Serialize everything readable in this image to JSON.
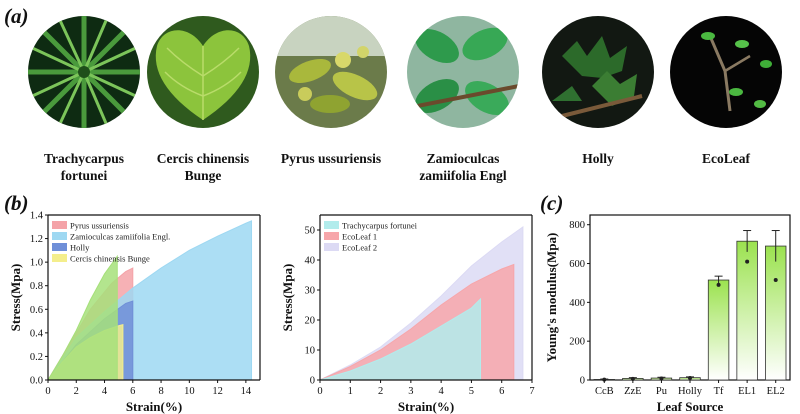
{
  "panel_a": {
    "label": "(a)",
    "leaves": [
      {
        "caption": [
          "Trachycarpus",
          "fortunei"
        ],
        "icon": "palm-leaf-photo"
      },
      {
        "caption": [
          "Cercis chinensis",
          "Bunge"
        ],
        "icon": "heart-leaf-photo"
      },
      {
        "caption": [
          "Pyrus ussuriensis"
        ],
        "icon": "pear-branch-photo"
      },
      {
        "caption": [
          "Zamioculcas",
          "zamiifolia Engl"
        ],
        "icon": "zz-plant-photo"
      },
      {
        "caption": [
          "Holly"
        ],
        "icon": "holly-leaf-photo"
      },
      {
        "caption": [
          "EcoLeaf"
        ],
        "icon": "ecoleaf-photo"
      }
    ]
  },
  "panel_b": {
    "label": "(b)"
  },
  "panel_c": {
    "label": "(c)"
  },
  "chart_data": [
    {
      "id": "b-left",
      "type": "area",
      "xlabel": "Strain(%)",
      "ylabel": "Stress(Mpa)",
      "xlim": [
        0,
        15
      ],
      "ylim": [
        0,
        1.4
      ],
      "xticks": [
        0,
        2,
        4,
        6,
        8,
        10,
        12,
        14
      ],
      "yticks": [
        0.0,
        0.2,
        0.4,
        0.6,
        0.8,
        1.0,
        1.2,
        1.4
      ],
      "legend_position": "top-left",
      "series": [
        {
          "name": "Pyrus ussuriensis",
          "color": "#f4a3a8",
          "points": [
            [
              0,
              0
            ],
            [
              1.5,
              0.3
            ],
            [
              3,
              0.6
            ],
            [
              4.5,
              0.82
            ],
            [
              5.5,
              0.92
            ],
            [
              6.0,
              0.95
            ]
          ]
        },
        {
          "name": "Zamioculcas zamiifolia Engl.",
          "color": "#9ed8f2",
          "points": [
            [
              0,
              0
            ],
            [
              1,
              0.18
            ],
            [
              2,
              0.36
            ],
            [
              4,
              0.58
            ],
            [
              6,
              0.78
            ],
            [
              8,
              0.95
            ],
            [
              10,
              1.1
            ],
            [
              12,
              1.22
            ],
            [
              14,
              1.33
            ],
            [
              14.4,
              1.35
            ]
          ]
        },
        {
          "name": "Holly",
          "color": "#6f8fd8",
          "points": [
            [
              0,
              0
            ],
            [
              2,
              0.3
            ],
            [
              4,
              0.52
            ],
            [
              5.5,
              0.65
            ],
            [
              6.0,
              0.67
            ]
          ]
        },
        {
          "name": "Cercis chinensis Bunge",
          "color": "#f4ee8c",
          "points": [
            [
              0,
              0
            ],
            [
              1,
              0.15
            ],
            [
              2,
              0.28
            ],
            [
              3,
              0.36
            ],
            [
              4,
              0.42
            ],
            [
              5,
              0.46
            ],
            [
              5.3,
              0.47
            ]
          ]
        },
        {
          "name": "",
          "color": "#a6e07a",
          "points": [
            [
              0,
              0
            ],
            [
              1,
              0.2
            ],
            [
              2,
              0.42
            ],
            [
              3,
              0.68
            ],
            [
              4,
              0.9
            ],
            [
              4.9,
              1.05
            ]
          ]
        }
      ]
    },
    {
      "id": "b-right",
      "type": "area",
      "xlabel": "Strain(%)",
      "ylabel": "Stress(Mpa)",
      "xlim": [
        0,
        7
      ],
      "ylim": [
        0,
        55
      ],
      "xticks": [
        0,
        1,
        2,
        3,
        4,
        5,
        6,
        7
      ],
      "yticks": [
        0,
        10,
        20,
        30,
        40,
        50
      ],
      "legend_position": "top-left",
      "series": [
        {
          "name": "EcoLeaf 2",
          "color": "#dcdaf4",
          "points": [
            [
              0,
              0
            ],
            [
              1,
              5
            ],
            [
              2,
              11
            ],
            [
              3,
              19
            ],
            [
              4,
              28
            ],
            [
              5,
              38
            ],
            [
              6,
              46
            ],
            [
              6.7,
              51
            ]
          ]
        },
        {
          "name": "EcoLeaf 1",
          "color": "#f7a6aa",
          "points": [
            [
              0,
              0
            ],
            [
              1,
              4.5
            ],
            [
              2,
              10
            ],
            [
              3,
              17
            ],
            [
              4,
              25
            ],
            [
              5,
              32
            ],
            [
              6,
              37
            ],
            [
              6.4,
              38.5
            ]
          ]
        },
        {
          "name": "Trachycarpus fortunei",
          "color": "#b2ecec",
          "points": [
            [
              0,
              0
            ],
            [
              1,
              3
            ],
            [
              2,
              7
            ],
            [
              3,
              12
            ],
            [
              4,
              18
            ],
            [
              5,
              24
            ],
            [
              5.3,
              27
            ]
          ]
        }
      ]
    },
    {
      "id": "c",
      "type": "bar",
      "xlabel": "Leaf Source",
      "ylabel": "Young's modulus(Mpa)",
      "ylim": [
        0,
        850
      ],
      "yticks": [
        0,
        200,
        400,
        600,
        800
      ],
      "categories": [
        "CcB",
        "ZzE",
        "Pu",
        "Holly",
        "Tf",
        "EL1",
        "EL2"
      ],
      "values": [
        3,
        8,
        10,
        12,
        515,
        715,
        690
      ],
      "errors": [
        2,
        4,
        4,
        4,
        20,
        55,
        80
      ],
      "points": [
        [
          2
        ],
        [
          6
        ],
        [
          8
        ],
        [
          10
        ],
        [
          490
        ],
        [
          610
        ],
        [
          515
        ]
      ]
    }
  ]
}
